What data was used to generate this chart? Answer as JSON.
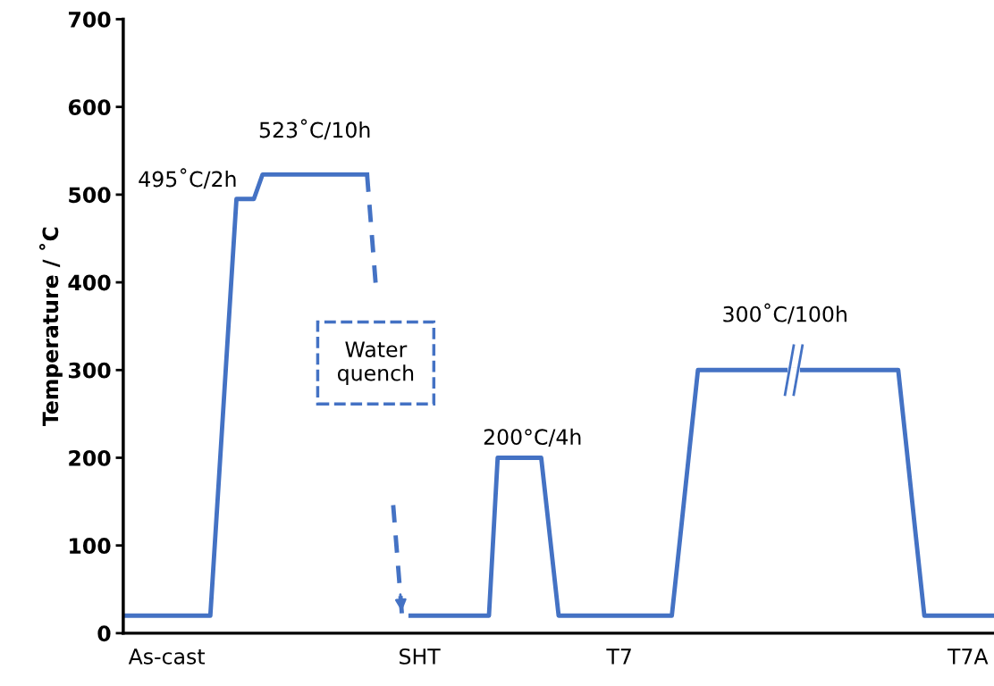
{
  "chart_data": {
    "type": "line",
    "ylabel": "Temperature / ˚C",
    "ylim": [
      0,
      700
    ],
    "yticks": [
      0,
      100,
      200,
      300,
      400,
      500,
      600,
      700
    ],
    "categories": [
      null,
      null,
      null,
      null,
      null,
      "As-cast",
      null,
      null,
      null,
      null,
      null,
      null,
      null,
      null,
      null,
      null,
      null,
      null,
      null,
      null,
      null,
      null,
      null,
      null,
      null,
      null,
      null,
      null,
      null,
      null,
      null,
      null,
      null,
      null,
      "SHT",
      null,
      null,
      null,
      null,
      null,
      null,
      null,
      null,
      null,
      null,
      null,
      null,
      null,
      null,
      null,
      null,
      null,
      null,
      null,
      null,
      null,
      null,
      "T7",
      null,
      null,
      null,
      null,
      null,
      null,
      null,
      null,
      null,
      null,
      null,
      null,
      null,
      null,
      null,
      null,
      null,
      null,
      null,
      null,
      null,
      null,
      null,
      null,
      null,
      null,
      null,
      null,
      null,
      null,
      null,
      null,
      null,
      null,
      null,
      null,
      null,
      null,
      null,
      "T7A",
      null,
      null,
      null
    ],
    "series": [
      {
        "color": "#4472c4",
        "line_style": "solid",
        "values": [
          20,
          20,
          20,
          20,
          20,
          20,
          20,
          20,
          20,
          20,
          20,
          178,
          337,
          495,
          495,
          495,
          523,
          523,
          523,
          523,
          523,
          523,
          523,
          523,
          523,
          523,
          523,
          523,
          523,
          null,
          null,
          null,
          null,
          null,
          null,
          null,
          null,
          null,
          null,
          null,
          null,
          null,
          null,
          null,
          null,
          null,
          null,
          null,
          null,
          null,
          null,
          null,
          null,
          null,
          null,
          null,
          null,
          null,
          null,
          null,
          null,
          null,
          null,
          null,
          null,
          null,
          null,
          null,
          null,
          null,
          null,
          null,
          null,
          null,
          null,
          null,
          null,
          null,
          null,
          null,
          null,
          null,
          null,
          null,
          null,
          null,
          null,
          null,
          null,
          null,
          null,
          null,
          null,
          null,
          null,
          null,
          null,
          null,
          null,
          null,
          null
        ]
      },
      {
        "color": "#4472c4",
        "line_style": "dashed",
        "values": [
          null,
          null,
          null,
          null,
          null,
          null,
          null,
          null,
          null,
          null,
          null,
          null,
          null,
          null,
          null,
          null,
          null,
          null,
          null,
          null,
          null,
          null,
          null,
          null,
          null,
          null,
          null,
          null,
          523,
          397,
          null,
          146,
          22,
          null,
          null,
          null,
          null,
          null,
          null,
          null,
          null,
          null,
          null,
          null,
          null,
          null,
          null,
          null,
          null,
          null,
          null,
          null,
          null,
          null,
          null,
          null,
          null,
          null,
          null,
          null,
          null,
          null,
          null,
          null,
          null,
          null,
          null,
          null,
          null,
          null,
          null,
          null,
          null,
          null,
          null,
          null,
          null,
          null,
          null,
          null,
          null,
          null,
          null,
          null,
          null,
          null,
          null,
          null,
          null,
          null,
          null,
          null,
          null,
          null,
          null,
          null,
          null,
          null,
          null,
          null,
          null
        ]
      },
      {
        "color": "#4472c4",
        "line_style": "solid",
        "values": [
          null,
          null,
          null,
          null,
          null,
          null,
          null,
          null,
          null,
          null,
          null,
          null,
          null,
          null,
          null,
          null,
          null,
          null,
          null,
          null,
          null,
          null,
          null,
          null,
          null,
          null,
          null,
          null,
          null,
          null,
          null,
          null,
          null,
          20,
          20,
          20,
          20,
          20,
          20,
          20,
          20,
          20,
          20,
          200,
          200,
          200,
          200,
          200,
          200,
          110,
          20,
          20,
          20,
          20,
          20,
          20,
          20,
          20,
          20,
          20,
          20,
          20,
          20,
          20,
          113,
          207,
          300,
          300,
          300,
          300,
          300,
          300,
          300,
          300,
          300,
          300,
          300,
          300,
          300,
          300,
          300,
          300,
          300,
          300,
          300,
          300,
          300,
          300,
          300,
          300,
          207,
          113,
          20,
          20,
          20,
          20,
          20,
          20,
          20,
          20,
          20
        ]
      }
    ],
    "annotations": [
      "495˚C/2h",
      "523˚C/10h",
      "Water\nquench",
      "200°C/4h",
      "300˚C/100h"
    ],
    "grid": false,
    "marker": "none"
  }
}
